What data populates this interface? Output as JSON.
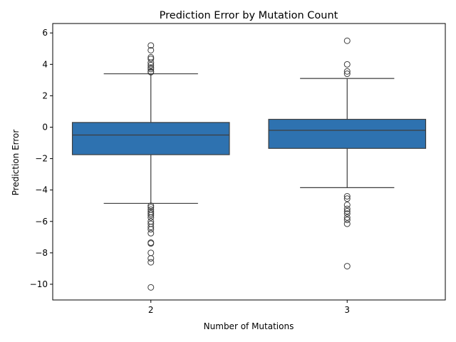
{
  "chart_data": {
    "type": "box",
    "title": "Prediction Error by Mutation Count",
    "xlabel": "Number of Mutations",
    "ylabel": "Prediction Error",
    "categories": [
      "2",
      "3"
    ],
    "ylim": [
      -11,
      6.6
    ],
    "yticks": [
      6,
      4,
      2,
      0,
      -2,
      -4,
      -6,
      -8,
      -10
    ],
    "ytick_labels": [
      "6",
      "4",
      "2",
      "0",
      "−2",
      "−4",
      "−6",
      "−8",
      "−10"
    ],
    "grid": false,
    "box_color": "#2e72b0",
    "line_color": "#3d3d3d",
    "boxes": [
      {
        "category": "2",
        "whisker_low": -4.85,
        "q1": -1.75,
        "median": -0.5,
        "q3": 0.3,
        "whisker_high": 3.4,
        "outliers": [
          5.2,
          4.9,
          4.45,
          4.35,
          4.1,
          3.95,
          3.8,
          3.7,
          3.55,
          3.5,
          -5.0,
          -5.1,
          -5.25,
          -5.4,
          -5.5,
          -5.6,
          -5.75,
          -6.0,
          -6.15,
          -6.35,
          -6.5,
          -6.75,
          -7.35,
          -7.4,
          -8.0,
          -8.35,
          -8.6,
          -10.2
        ]
      },
      {
        "category": "3",
        "whisker_low": -3.85,
        "q1": -1.35,
        "median": -0.2,
        "q3": 0.5,
        "whisker_high": 3.1,
        "outliers": [
          5.5,
          4.0,
          3.55,
          3.4,
          -4.4,
          -4.55,
          -4.95,
          -5.2,
          -5.35,
          -5.5,
          -5.75,
          -5.9,
          -6.15,
          -8.85
        ]
      }
    ]
  }
}
